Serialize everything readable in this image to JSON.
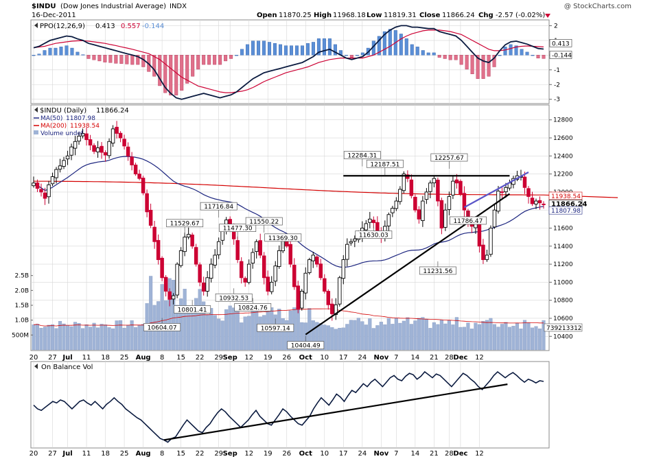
{
  "header": {
    "ticker": "$INDU",
    "name": "(Dow Jones Industrial Average)",
    "exchange": "INDX",
    "date": "16-Dec-2011",
    "watermark": "@ StockCharts.com",
    "ohlc": {
      "open_label": "Open",
      "open": "11870.25",
      "high_label": "High",
      "high": "11968.18",
      "low_label": "Low",
      "low": "11819.31",
      "close_label": "Close",
      "close": "11866.24",
      "chg_label": "Chg",
      "chg": "-2.57 (-0.02%)"
    }
  },
  "colors": {
    "up": "#000000",
    "down": "#cc0033",
    "ma50": "#1a237e",
    "ma200": "#d40000",
    "ppo_line": "#0a1a3f",
    "ppo_signal": "#cc0033",
    "hist_pos": "#5b8fd6",
    "hist_neg": "#e0708a",
    "volume": "#9fb3d6",
    "obv": "#0a1a3f",
    "trend_blue": "#5a55c8",
    "grid": "#d6d6d6"
  },
  "chart_data": [
    {
      "type": "line",
      "panel": "ppo",
      "legend": [
        {
          "label": "PPO(12,26,9)",
          "value": "0.413"
        },
        {
          "label": "",
          "value": "0.557"
        },
        {
          "label": "",
          "value": "-0.144"
        }
      ],
      "ylim": [
        -3.2,
        2.3
      ],
      "yticks": [
        -3,
        -2,
        -1,
        0,
        1,
        2
      ],
      "ytick_labels": [
        "-3",
        "-2",
        "-1",
        "0",
        "1",
        "2"
      ],
      "last_value_labels": [
        "0.413",
        "-0.144"
      ],
      "ppo": [
        0.5,
        0.6,
        0.8,
        1.0,
        1.1,
        1.2,
        1.3,
        1.25,
        1.1,
        1.0,
        0.8,
        0.7,
        0.6,
        0.5,
        0.4,
        0.3,
        0.2,
        0.1,
        0.0,
        -0.1,
        -0.3,
        -0.6,
        -1.0,
        -1.6,
        -2.2,
        -2.6,
        -2.9,
        -3.0,
        -2.9,
        -2.8,
        -2.7,
        -2.6,
        -2.7,
        -2.8,
        -2.9,
        -2.8,
        -2.7,
        -2.5,
        -2.2,
        -1.9,
        -1.6,
        -1.4,
        -1.2,
        -1.1,
        -1.0,
        -0.9,
        -0.8,
        -0.7,
        -0.6,
        -0.5,
        -0.3,
        -0.1,
        0.2,
        0.3,
        0.4,
        0.2,
        0.0,
        -0.2,
        -0.3,
        -0.2,
        -0.1,
        0.2,
        0.6,
        1.0,
        1.4,
        1.7,
        1.9,
        2.0,
        2.0,
        1.9,
        1.9,
        1.85,
        1.8,
        1.8,
        1.6,
        1.5,
        1.4,
        1.3,
        1.0,
        0.6,
        0.2,
        -0.2,
        -0.4,
        -0.5,
        -0.2,
        0.3,
        0.7,
        0.9,
        0.95,
        0.85,
        0.75,
        0.6,
        0.45,
        0.41
      ],
      "signal": [
        0.5,
        0.55,
        0.6,
        0.7,
        0.8,
        0.85,
        0.9,
        0.95,
        0.97,
        0.98,
        0.95,
        0.9,
        0.85,
        0.8,
        0.72,
        0.65,
        0.56,
        0.48,
        0.4,
        0.3,
        0.2,
        0.1,
        -0.1,
        -0.3,
        -0.6,
        -0.9,
        -1.2,
        -1.5,
        -1.7,
        -1.9,
        -2.1,
        -2.2,
        -2.3,
        -2.4,
        -2.5,
        -2.55,
        -2.55,
        -2.5,
        -2.45,
        -2.35,
        -2.2,
        -2.0,
        -1.8,
        -1.65,
        -1.5,
        -1.35,
        -1.2,
        -1.1,
        -1.0,
        -0.9,
        -0.8,
        -0.65,
        -0.5,
        -0.4,
        -0.3,
        -0.25,
        -0.2,
        -0.2,
        -0.2,
        -0.2,
        -0.2,
        -0.1,
        0.0,
        0.2,
        0.4,
        0.6,
        0.85,
        1.1,
        1.3,
        1.45,
        1.55,
        1.65,
        1.7,
        1.7,
        1.7,
        1.65,
        1.6,
        1.5,
        1.4,
        1.2,
        1.0,
        0.8,
        0.6,
        0.4,
        0.3,
        0.3,
        0.35,
        0.45,
        0.55,
        0.6,
        0.62,
        0.6,
        0.58,
        0.557
      ]
    },
    {
      "type": "candlestick",
      "panel": "price",
      "legend": [
        {
          "label": "$INDU (Daily)",
          "value": "11866.24"
        },
        {
          "label": "MA(50)",
          "value": "11807.98"
        },
        {
          "label": "MA(200)",
          "value": "11938.54"
        },
        {
          "label": "Volume undef",
          "value": ""
        }
      ],
      "ylim": [
        10250,
        12950
      ],
      "yticks": [
        10400,
        10600,
        10800,
        11000,
        11200,
        11400,
        11600,
        11800,
        12000,
        12200,
        12400,
        12600,
        12800
      ],
      "ytick_labels": [
        "10400",
        "10600",
        "10800",
        "11000",
        "11200",
        "11400",
        "11600",
        "11800",
        "12000",
        "12200",
        "12400",
        "12600",
        "12800"
      ],
      "last_value_labels": [
        "11938.54",
        "11866.24",
        "11807.98"
      ],
      "x_labels": [
        {
          "label": "20",
          "i": 0
        },
        {
          "label": "27",
          "i": 5
        },
        {
          "label": "Jul",
          "i": 9,
          "bold": true
        },
        {
          "label": "11",
          "i": 14
        },
        {
          "label": "18",
          "i": 19
        },
        {
          "label": "25",
          "i": 24
        },
        {
          "label": "Aug",
          "i": 29,
          "bold": true
        },
        {
          "label": "8",
          "i": 34
        },
        {
          "label": "15",
          "i": 39
        },
        {
          "label": "22",
          "i": 44
        },
        {
          "label": "29",
          "i": 49
        },
        {
          "label": "Sep",
          "i": 52,
          "bold": true
        },
        {
          "label": "12",
          "i": 57
        },
        {
          "label": "19",
          "i": 62
        },
        {
          "label": "26",
          "i": 67
        },
        {
          "label": "Oct",
          "i": 72,
          "bold": true
        },
        {
          "label": "10",
          "i": 77
        },
        {
          "label": "17",
          "i": 82
        },
        {
          "label": "24",
          "i": 87
        },
        {
          "label": "Nov",
          "i": 92,
          "bold": true
        },
        {
          "label": "7",
          "i": 96
        },
        {
          "label": "14",
          "i": 101
        },
        {
          "label": "21",
          "i": 106
        },
        {
          "label": "28",
          "i": 110
        },
        {
          "label": "Dec",
          "i": 113,
          "bold": true
        },
        {
          "label": "12",
          "i": 118
        }
      ],
      "close": [
        12100,
        12040,
        12000,
        11930,
        12080,
        12170,
        12250,
        12290,
        12350,
        12400,
        12500,
        12560,
        12620,
        12650,
        12580,
        12520,
        12450,
        12490,
        12440,
        12410,
        12560,
        12700,
        12650,
        12600,
        12510,
        12400,
        12300,
        12200,
        12150,
        11990,
        11780,
        11630,
        11450,
        11250,
        11050,
        10900,
        10810,
        10850,
        11200,
        11350,
        11500,
        11530,
        11400,
        11200,
        11000,
        10900,
        11050,
        11200,
        11300,
        11450,
        11600,
        11690,
        11620,
        11480,
        11250,
        11050,
        11000,
        11200,
        11330,
        11450,
        11300,
        11050,
        10900,
        11000,
        11180,
        11350,
        11470,
        11400,
        11200,
        10950,
        10700,
        10900,
        11100,
        11250,
        11300,
        11200,
        11050,
        10900,
        10750,
        10650,
        10750,
        11050,
        11250,
        11420,
        11450,
        11480,
        11530,
        11600,
        11650,
        11700,
        11660,
        11550,
        11500,
        11620,
        11750,
        11820,
        11900,
        12030,
        12200,
        12150,
        11960,
        11800,
        11700,
        11900,
        12000,
        12100,
        12150,
        11900,
        11600,
        11800,
        11950,
        12120,
        12100,
        11980,
        11800,
        11680,
        11620,
        11700,
        11400,
        11250,
        11300,
        11600,
        11800,
        12010,
        12000,
        12050,
        12100,
        12150,
        12180,
        12170,
        12050,
        11950,
        11870,
        11900,
        11880,
        11866
      ],
      "volume_ylim": [
        0,
        3000
      ],
      "volume_ticks": [
        500,
        1000,
        1500,
        2000,
        2500
      ],
      "volume_tick_labels": [
        "500M",
        "1.0B",
        "1.5B",
        "2.0B",
        "2.5B"
      ],
      "volume_last_label": "739213312",
      "annotations": [
        {
          "label": "12284.31",
          "i": 87,
          "v": 12284.31,
          "pos": "above"
        },
        {
          "label": "12187.51",
          "i": 93,
          "v": 12187.51,
          "pos": "above"
        },
        {
          "label": "12257.67",
          "i": 110,
          "v": 12257.67,
          "pos": "above"
        },
        {
          "label": "11716.84",
          "i": 49,
          "v": 11716.84,
          "pos": "above"
        },
        {
          "label": "11529.67",
          "i": 40,
          "v": 11529.67,
          "pos": "above"
        },
        {
          "label": "11477.30",
          "i": 54,
          "v": 11477.3,
          "pos": "above"
        },
        {
          "label": "11550.22",
          "i": 61,
          "v": 11550.22,
          "pos": "above"
        },
        {
          "label": "11369.30",
          "i": 66,
          "v": 11369.3,
          "pos": "above"
        },
        {
          "label": "11630.03",
          "i": 90,
          "v": 11630.03,
          "pos": "below"
        },
        {
          "label": "11786.47",
          "i": 115,
          "v": 11786.47,
          "pos": "below"
        },
        {
          "label": "11231.56",
          "i": 107,
          "v": 11231.56,
          "pos": "below"
        },
        {
          "label": "10932.53",
          "i": 53,
          "v": 10932.53,
          "pos": "below"
        },
        {
          "label": "10824.76",
          "i": 58,
          "v": 10824.76,
          "pos": "below"
        },
        {
          "label": "10801.41",
          "i": 42,
          "v": 10801.41,
          "pos": "below"
        },
        {
          "label": "10604.07",
          "i": 34,
          "v": 10604.07,
          "pos": "below"
        },
        {
          "label": "10597.14",
          "i": 64,
          "v": 10597.14,
          "pos": "below"
        },
        {
          "label": "10404.49",
          "i": 72,
          "v": 10404.49,
          "pos": "below"
        }
      ],
      "trendlines": [
        {
          "kind": "resistance",
          "from": [
            82,
            12180
          ],
          "to": [
            126,
            12180
          ]
        },
        {
          "kind": "support",
          "from": [
            72,
            10420
          ],
          "to": [
            126,
            11980
          ]
        },
        {
          "kind": "projection",
          "from": [
            114,
            11830
          ],
          "to": [
            131,
            12220
          ]
        }
      ]
    },
    {
      "type": "line",
      "panel": "obv",
      "legend": [
        {
          "label": "On Balance Vol",
          "value": ""
        }
      ],
      "trendlines": [
        {
          "kind": "support",
          "from": [
            34,
            0.08
          ],
          "to": [
            120,
            0.86
          ]
        }
      ],
      "values": [
        0.55,
        0.5,
        0.48,
        0.52,
        0.56,
        0.6,
        0.58,
        0.62,
        0.6,
        0.55,
        0.5,
        0.55,
        0.6,
        0.62,
        0.58,
        0.55,
        0.6,
        0.55,
        0.5,
        0.56,
        0.6,
        0.65,
        0.6,
        0.56,
        0.5,
        0.46,
        0.42,
        0.38,
        0.35,
        0.3,
        0.25,
        0.2,
        0.15,
        0.1,
        0.08,
        0.05,
        0.1,
        0.12,
        0.2,
        0.28,
        0.35,
        0.3,
        0.25,
        0.2,
        0.18,
        0.25,
        0.3,
        0.38,
        0.45,
        0.5,
        0.46,
        0.4,
        0.35,
        0.3,
        0.25,
        0.3,
        0.35,
        0.42,
        0.48,
        0.4,
        0.35,
        0.3,
        0.28,
        0.35,
        0.42,
        0.5,
        0.46,
        0.4,
        0.35,
        0.3,
        0.28,
        0.34,
        0.4,
        0.5,
        0.58,
        0.65,
        0.6,
        0.55,
        0.62,
        0.7,
        0.66,
        0.6,
        0.68,
        0.75,
        0.72,
        0.78,
        0.84,
        0.8,
        0.86,
        0.9,
        0.85,
        0.8,
        0.86,
        0.92,
        0.95,
        0.9,
        0.88,
        0.94,
        0.98,
        0.96,
        0.9,
        0.94,
        1.0,
        0.96,
        0.92,
        0.97,
        0.95,
        0.9,
        0.85,
        0.8,
        0.86,
        0.92,
        0.98,
        0.95,
        0.9,
        0.86,
        0.8,
        0.76,
        0.82,
        0.88,
        0.95,
        1.0,
        0.96,
        0.92,
        0.96,
        0.99,
        0.95,
        0.9,
        0.86,
        0.9,
        0.88,
        0.85,
        0.88,
        0.87
      ]
    }
  ]
}
